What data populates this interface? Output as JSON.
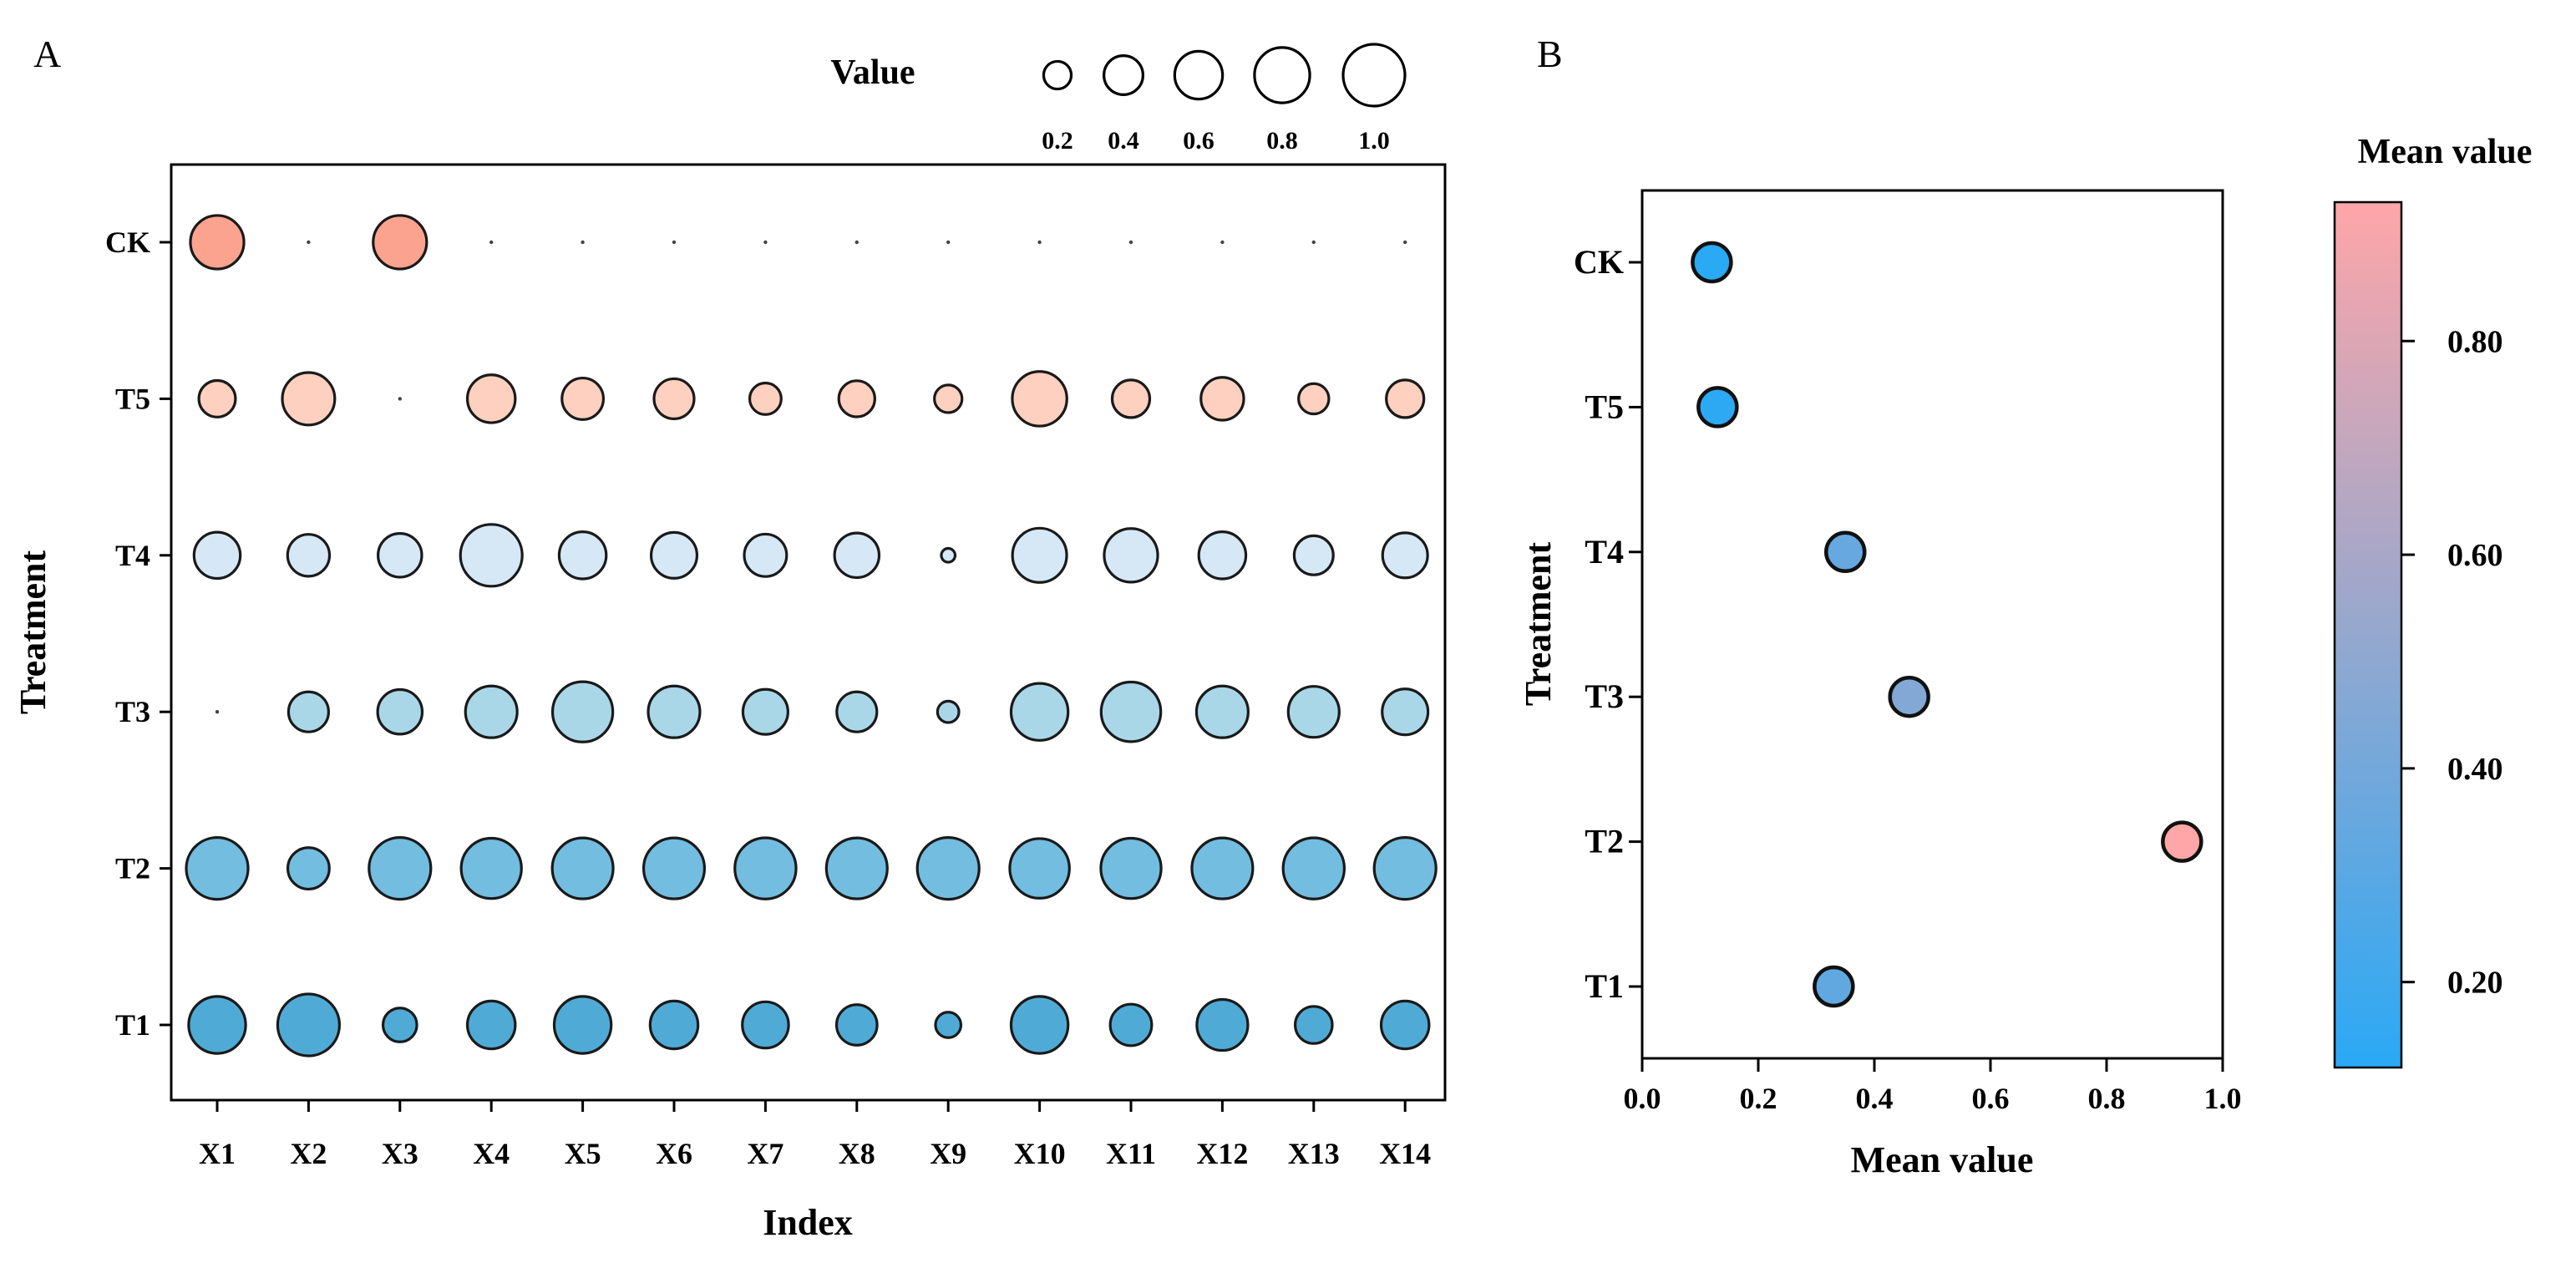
{
  "panel_labels": {
    "a": "A",
    "b": "B"
  },
  "chart_data": [
    {
      "type": "scatter",
      "subtype": "bubble",
      "title": "",
      "xlabel": "Index",
      "ylabel": "Treatment",
      "x_categories": [
        "X1",
        "X2",
        "X3",
        "X4",
        "X5",
        "X6",
        "X7",
        "X8",
        "X9",
        "X10",
        "X11",
        "X12",
        "X13",
        "X14"
      ],
      "y_categories": [
        "CK",
        "T5",
        "T4",
        "T3",
        "T2",
        "T1"
      ],
      "size_legend": {
        "title": "Value",
        "values": [
          0.2,
          0.4,
          0.6,
          0.8,
          1.0
        ],
        "labels": [
          "0.2",
          "0.4",
          "0.6",
          "0.8",
          "1.0"
        ]
      },
      "series": [
        {
          "name": "CK",
          "color": "#fba38f",
          "values": [
            0.75,
            0.0,
            0.75,
            0.0,
            0.0,
            0.0,
            0.0,
            0.0,
            0.0,
            0.0,
            0.0,
            0.0,
            0.0,
            0.0
          ]
        },
        {
          "name": "T5",
          "color": "#fdd0c0",
          "values": [
            0.35,
            0.72,
            0.0,
            0.6,
            0.45,
            0.42,
            0.26,
            0.34,
            0.2,
            0.78,
            0.37,
            0.48,
            0.24,
            0.37
          ]
        },
        {
          "name": "T4",
          "color": "#d6e8f6",
          "values": [
            0.56,
            0.46,
            0.5,
            1.0,
            0.58,
            0.55,
            0.47,
            0.52,
            0.05,
            0.77,
            0.75,
            0.58,
            0.4,
            0.53
          ]
        },
        {
          "name": "T3",
          "color": "#a9d7e8",
          "values": [
            0.0,
            0.42,
            0.52,
            0.7,
            0.95,
            0.7,
            0.53,
            0.42,
            0.12,
            0.85,
            0.93,
            0.7,
            0.68,
            0.55
          ]
        },
        {
          "name": "T2",
          "color": "#72bde0",
          "values": [
            1.0,
            0.45,
            1.0,
            0.95,
            0.97,
            0.97,
            0.98,
            0.97,
            1.0,
            0.93,
            0.95,
            0.97,
            0.98,
            1.0
          ]
        },
        {
          "name": "T1",
          "color": "#4fabd5",
          "values": [
            0.85,
            1.0,
            0.3,
            0.6,
            0.85,
            0.6,
            0.56,
            0.43,
            0.17,
            0.85,
            0.45,
            0.68,
            0.36,
            0.6
          ]
        }
      ]
    },
    {
      "type": "scatter",
      "title": "",
      "xlabel": "Mean value",
      "ylabel": "Treatment",
      "y_categories": [
        "CK",
        "T5",
        "T4",
        "T3",
        "T2",
        "T1"
      ],
      "x_ticks": [
        0.0,
        0.2,
        0.4,
        0.6,
        0.8,
        1.0
      ],
      "x_tick_labels": [
        "0.0",
        "0.2",
        "0.4",
        "0.6",
        "0.8",
        "1.0"
      ],
      "xlim": [
        0.0,
        1.0
      ],
      "points": [
        {
          "name": "CK",
          "x": 0.12
        },
        {
          "name": "T5",
          "x": 0.13
        },
        {
          "name": "T4",
          "x": 0.35
        },
        {
          "name": "T3",
          "x": 0.46
        },
        {
          "name": "T2",
          "x": 0.93
        },
        {
          "name": "T1",
          "x": 0.33
        }
      ],
      "colorbar": {
        "title": "Mean value",
        "range": [
          0.12,
          0.93
        ],
        "colors": [
          "#2aa9f5",
          "#ffa6a8"
        ],
        "ticks": [
          0.2,
          0.4,
          0.6,
          0.8
        ],
        "tick_labels": [
          "0.20",
          "0.40",
          "0.60",
          "0.80"
        ]
      }
    }
  ]
}
